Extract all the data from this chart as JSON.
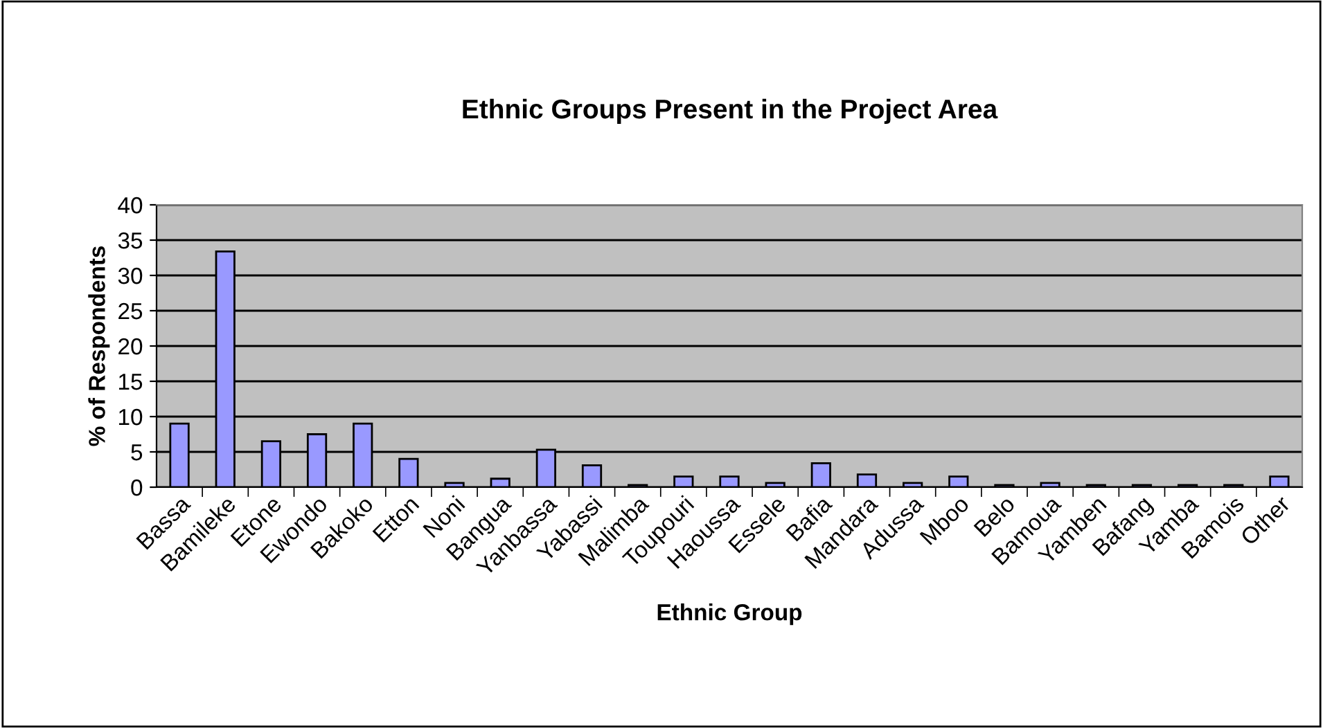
{
  "chart_data": {
    "type": "bar",
    "title": "Ethnic Groups Present in the Project Area",
    "xlabel": "Ethnic Group",
    "ylabel": "% of Respondents",
    "categories": [
      "Bassa",
      "Bamileke",
      "Etone",
      "Ewondo",
      "Bakoko",
      "Etton",
      "Noni",
      "Bangua",
      "Yanbassa",
      "Yabassi",
      "Malimba",
      "Toupouri",
      "Haoussa",
      "Essele",
      "Bafia",
      "Mandara",
      "Adussa",
      "Mboo",
      "Belo",
      "Bamoua",
      "Yamben",
      "Bafang",
      "Yamba",
      "Bamois",
      "Other"
    ],
    "values": [
      9,
      33.4,
      6.5,
      7.5,
      9,
      4,
      0.6,
      1.2,
      5.3,
      3.1,
      0.3,
      1.5,
      1.5,
      0.6,
      3.4,
      1.8,
      0.6,
      1.5,
      0.3,
      0.6,
      0.3,
      0.3,
      0.3,
      0.3,
      1.5
    ],
    "color": "#9999ff",
    "ylim": [
      0,
      40
    ],
    "yticks": [
      0,
      5,
      10,
      15,
      20,
      25,
      30,
      35,
      40
    ],
    "grid": "y",
    "legend": false
  }
}
